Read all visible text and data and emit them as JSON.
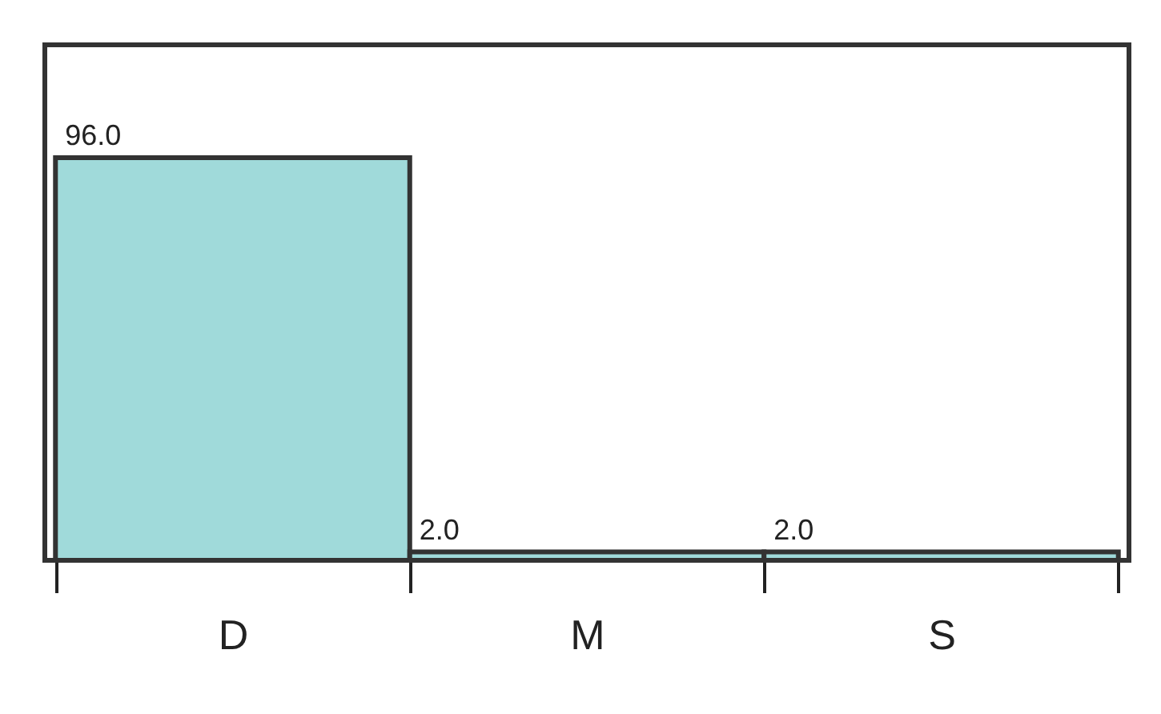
{
  "chart_data": {
    "type": "bar",
    "categories": [
      "D",
      "M",
      "S"
    ],
    "values": [
      96.0,
      2.0,
      2.0
    ],
    "colors": [
      "#a0dada",
      "#a0dada",
      "#a0dada"
    ],
    "value_labels": [
      "96.0",
      "2.0",
      "2.0"
    ]
  }
}
